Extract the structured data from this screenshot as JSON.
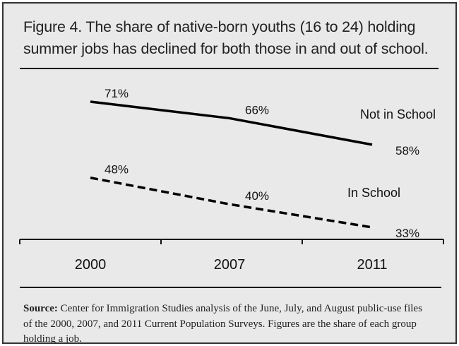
{
  "chart_data": {
    "type": "line",
    "title": "Figure 4. The share of native-born youths (16 to 24) holding summer jobs has declined for both those in and out of school.",
    "categories": [
      "2000",
      "2007",
      "2011"
    ],
    "series": [
      {
        "name": "Not in School",
        "values": [
          71,
          66,
          58
        ],
        "labels": [
          "71%",
          "66%",
          "58%"
        ],
        "style": "solid",
        "color": "#000000"
      },
      {
        "name": "In School",
        "values": [
          48,
          40,
          33
        ],
        "labels": [
          "48%",
          "40%",
          "33%"
        ],
        "style": "dashed",
        "color": "#000000"
      }
    ],
    "xlabel": "",
    "ylabel": "",
    "ylim": [
      2,
      80
    ],
    "grid": false,
    "legend": "inline labels"
  },
  "source": {
    "label": "Source:",
    "text": "Center for Immigration Studies analysis of the June, July, and August public-use files of the 2000, 2007, and 2011 Current Population Surveys.  Figures are the share of each group holding a job."
  }
}
